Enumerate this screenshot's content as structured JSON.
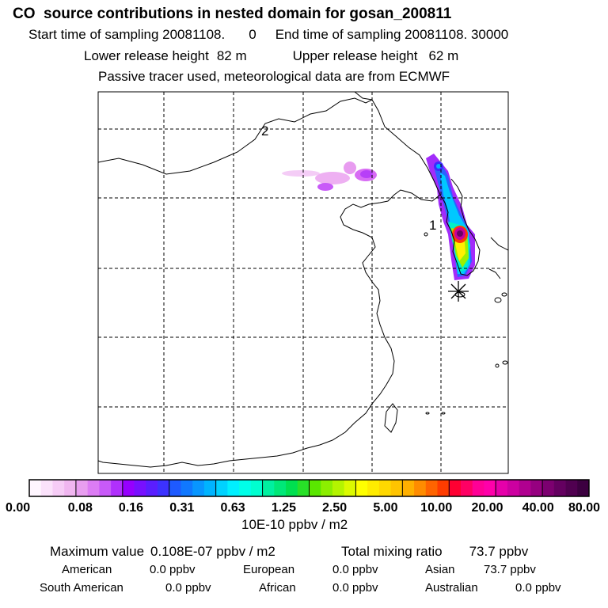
{
  "header": {
    "title": "CO  source contributions in nested domain for gosan_200811",
    "start_label": "Start time of sampling 20081108.",
    "start_hour": "0",
    "end_label": "End time of sampling 20081108. 30000",
    "lower_label": "Lower release height",
    "lower_value": "82 m",
    "upper_label": "Upper release height",
    "upper_value": "62 m",
    "tracer_note": "Passive tracer used, meteorological data are from ECMWF"
  },
  "map": {
    "contour_labels": [
      "2",
      "1"
    ],
    "receptor_marker": "receptor-star",
    "colors": {
      "coast": "#000000",
      "grid": "#000000"
    }
  },
  "colorbar": {
    "tick_labels": [
      "0.00",
      "0.08",
      "0.16",
      "0.31",
      "0.63",
      "1.25",
      "2.50",
      "5.00",
      "10.00",
      "20.00",
      "40.00",
      "80.00"
    ],
    "colors": [
      [
        "#fff6ff",
        "#fbe2fb",
        "#f6ccf6",
        "#f0b6f0"
      ],
      [
        "#e89ef0",
        "#dc7cf4",
        "#c85af8",
        "#b030fc"
      ],
      [
        "#9600ff",
        "#7810ff",
        "#5a1eff",
        "#3c32ff"
      ],
      [
        "#1e5aff",
        "#1078ff",
        "#0896ff",
        "#00b4ff"
      ],
      [
        "#00d2ff",
        "#00f0ff",
        "#00ffe8",
        "#00ffd0"
      ],
      [
        "#00f0a0",
        "#00e878",
        "#00e050",
        "#28e028"
      ],
      [
        "#5ae600",
        "#8cee00",
        "#b4f400",
        "#dcfa00"
      ],
      [
        "#ffff00",
        "#ffec00",
        "#ffd800",
        "#ffc400"
      ],
      [
        "#ffb000",
        "#ff8c00",
        "#ff6400",
        "#ff3c00"
      ],
      [
        "#ff0032",
        "#ff0064",
        "#ff0096",
        "#ff00aa"
      ],
      [
        "#e600aa",
        "#cc00a0",
        "#b00090",
        "#960080"
      ],
      [
        "#7c0070",
        "#640060",
        "#500050",
        "#3c0040"
      ]
    ],
    "unit_label": "10E-10 ppbv / m2"
  },
  "stats": {
    "max_label": "Maximum value",
    "max_value": "0.108E-07 ppbv / m2",
    "total_label": "Total mixing ratio",
    "total_value": "73.7 ppbv",
    "regions": [
      {
        "name": "American",
        "value": "0.0 ppbv"
      },
      {
        "name": "European",
        "value": "0.0 ppbv"
      },
      {
        "name": "Asian",
        "value": "73.7 ppbv"
      },
      {
        "name": "South American",
        "value": "0.0 ppbv"
      },
      {
        "name": "African",
        "value": "0.0 ppbv"
      },
      {
        "name": "Australian",
        "value": "0.0 ppbv"
      }
    ]
  }
}
